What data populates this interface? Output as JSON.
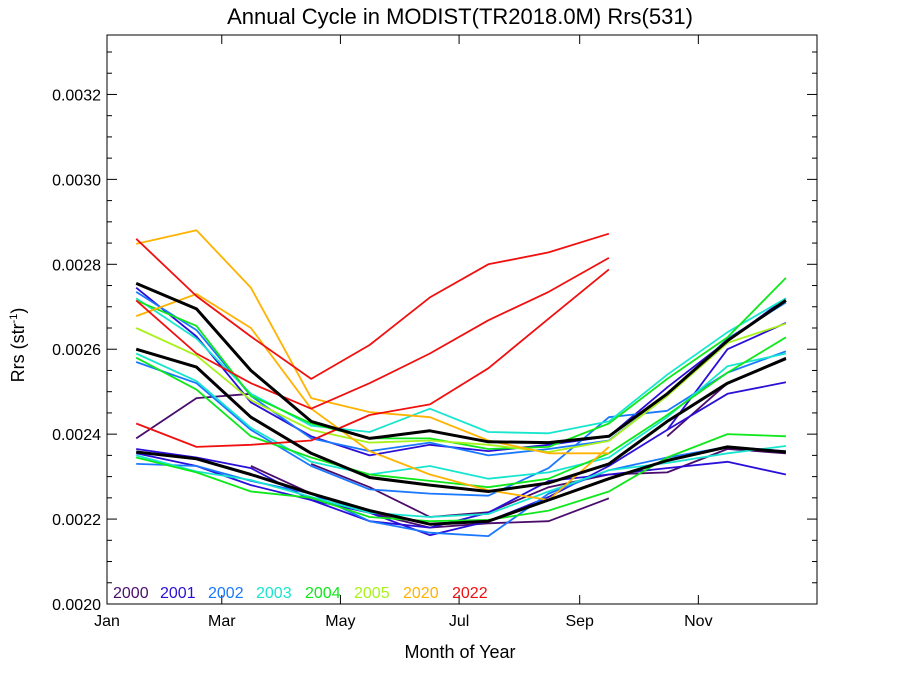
{
  "chart_data": {
    "type": "line",
    "title": "Annual Cycle in MODIST(TR2018.0M) Rrs(531)",
    "xlabel": "Month of Year",
    "ylabel_main": "Rrs (str",
    "ylabel_sup": "-1",
    "ylabel_end": ")",
    "xlim": [
      0,
      365
    ],
    "ylim": [
      0.002,
      0.00334
    ],
    "x_ticks": [
      {
        "value": 0,
        "label": "Jan"
      },
      {
        "value": 59,
        "label": "Mar"
      },
      {
        "value": 120,
        "label": "May"
      },
      {
        "value": 181,
        "label": "Jul"
      },
      {
        "value": 243,
        "label": "Sep"
      },
      {
        "value": 304,
        "label": "Nov"
      }
    ],
    "y_ticks": [
      {
        "value": 0.002,
        "label": "0.0020"
      },
      {
        "value": 0.0022,
        "label": "0.0022"
      },
      {
        "value": 0.0024,
        "label": "0.0024"
      },
      {
        "value": 0.0026,
        "label": "0.0026"
      },
      {
        "value": 0.0028,
        "label": "0.0028"
      },
      {
        "value": 0.003,
        "label": "0.0030"
      },
      {
        "value": 0.0032,
        "label": "0.0032"
      }
    ],
    "x": [
      15,
      46,
      74,
      105,
      135,
      166,
      196,
      227,
      258,
      288,
      319,
      349
    ],
    "legend": [
      {
        "label": "2000",
        "color": "#4b0d6b"
      },
      {
        "label": "2001",
        "color": "#2a0fd8"
      },
      {
        "label": "2002",
        "color": "#1a78ff"
      },
      {
        "label": "2003",
        "color": "#17e6cf"
      },
      {
        "label": "2004",
        "color": "#0fe81a"
      },
      {
        "label": "2005",
        "color": "#a8f21a"
      },
      {
        "label": "2020",
        "color": "#ffb200"
      },
      {
        "label": "2022",
        "color": "#f01010"
      }
    ],
    "series": [
      {
        "color": "#4b0d6b",
        "values": [
          0.00239,
          0.002485,
          0.002495,
          null,
          null,
          null,
          null,
          null,
          null,
          0.002395,
          0.00252,
          0.00258
        ]
      },
      {
        "color": "#4b0d6b",
        "values": [
          null,
          null,
          0.002325,
          0.00226,
          0.002215,
          0.00218,
          0.00219,
          0.002195,
          0.002249,
          null,
          null,
          null
        ]
      },
      {
        "color": "#4b0d6b",
        "values": [
          null,
          null,
          null,
          0.00233,
          0.002275,
          0.002205,
          0.002216,
          0.002275,
          0.002305,
          0.00231,
          0.002365,
          0.002355
        ]
      },
      {
        "color": "#2a0fd8",
        "values": [
          0.002745,
          0.00263,
          0.002475,
          0.002395,
          0.00235,
          0.002375,
          0.00236,
          0.002375,
          0.002395,
          0.00251,
          0.00262,
          0.00272
        ]
      },
      {
        "color": "#2a0fd8",
        "values": [
          0.002355,
          0.002325,
          0.00228,
          0.002245,
          0.002215,
          0.002162,
          0.002195,
          0.002252,
          0.002325,
          0.00241,
          0.0026,
          0.002662
        ]
      },
      {
        "color": "#2a0fd8",
        "values": [
          0.002365,
          0.002345,
          0.00232,
          0.002245,
          0.002195,
          0.00218,
          0.002215,
          0.00229,
          0.002305,
          0.00232,
          0.002335,
          0.002305
        ]
      },
      {
        "color": "#2a0fd8",
        "values": [
          null,
          null,
          null,
          null,
          null,
          null,
          null,
          null,
          null,
          0.00241,
          0.002495,
          0.002522
        ]
      },
      {
        "color": "#1a78ff",
        "values": [
          0.00257,
          0.00252,
          0.00241,
          0.002325,
          0.00227,
          0.00226,
          0.002255,
          0.00232,
          0.00244,
          0.002455,
          0.002545,
          0.002595
        ]
      },
      {
        "color": "#1a78ff",
        "values": [
          0.00233,
          0.002325,
          0.00229,
          0.00226,
          0.002195,
          0.002168,
          0.00216,
          0.00226,
          0.002315,
          0.002345,
          0.00237,
          0.00236
        ]
      },
      {
        "color": "#1a78ff",
        "values": [
          0.002735,
          0.002645,
          0.00249,
          0.00239,
          0.00236,
          0.00238,
          0.00235,
          0.002365,
          0.002385,
          0.00249,
          0.002625,
          0.00271
        ]
      },
      {
        "color": "#17e6cf",
        "values": [
          0.00272,
          0.002625,
          0.002495,
          0.00242,
          0.002405,
          0.00246,
          0.002405,
          0.002402,
          0.00243,
          0.00254,
          0.00264,
          0.00272
        ]
      },
      {
        "color": "#17e6cf",
        "values": [
          0.00259,
          0.002525,
          0.002415,
          0.002335,
          0.002305,
          0.002325,
          0.002295,
          0.00231,
          0.002345,
          0.00244,
          0.00256,
          0.00259
        ]
      },
      {
        "color": "#17e6cf",
        "values": [
          0.00235,
          0.002312,
          0.002292,
          0.002252,
          0.002215,
          0.002205,
          0.002212,
          0.002265,
          0.002315,
          0.002332,
          0.002355,
          0.002372
        ]
      },
      {
        "color": "#0fe81a",
        "values": [
          0.00258,
          0.002505,
          0.002395,
          0.002345,
          0.002305,
          0.00229,
          0.002275,
          0.002295,
          0.002355,
          0.002445,
          0.002545,
          0.002628
        ]
      },
      {
        "color": "#0fe81a",
        "values": [
          0.002345,
          0.00231,
          0.002265,
          0.00225,
          0.002205,
          0.002195,
          0.002198,
          0.00222,
          0.002265,
          0.002345,
          0.0024,
          0.002395
        ]
      },
      {
        "color": "#0fe81a",
        "values": [
          0.002715,
          0.002655,
          0.00249,
          0.002425,
          0.00239,
          0.00239,
          0.002365,
          0.00237,
          0.002425,
          0.00253,
          0.002628,
          0.002768
        ]
      },
      {
        "color": "#a8f21a",
        "values": [
          0.00265,
          0.002585,
          0.00248,
          0.00241,
          0.00238,
          0.002385,
          0.002375,
          0.002358,
          0.002384,
          0.00249,
          0.002615,
          0.00266
        ]
      },
      {
        "color": "#ffb200",
        "values": [
          0.002848,
          0.00288,
          0.002745,
          0.002485,
          0.002452,
          0.00244,
          0.002385,
          0.002355,
          0.002355,
          null,
          null,
          null
        ]
      },
      {
        "color": "#ffb200",
        "values": [
          0.002678,
          0.00273,
          0.00265,
          0.00246,
          0.00236,
          0.002305,
          0.002268,
          0.002245,
          0.00237,
          null,
          null,
          null
        ]
      },
      {
        "color": "#f01010",
        "values": [
          0.00286,
          0.002725,
          0.00263,
          0.00253,
          0.00261,
          0.002722,
          0.0028,
          0.002828,
          0.002872,
          null,
          null,
          null
        ]
      },
      {
        "color": "#f01010",
        "values": [
          0.002715,
          0.00259,
          0.00252,
          0.00246,
          0.00252,
          0.00259,
          0.002668,
          0.002735,
          0.002815,
          null,
          null,
          null
        ]
      },
      {
        "color": "#f01010",
        "values": [
          0.002425,
          0.00237,
          0.002375,
          0.002385,
          0.002445,
          0.00247,
          0.002555,
          0.002672,
          0.002788,
          null,
          null,
          null
        ]
      },
      {
        "color": "#000000",
        "width": 3,
        "values": [
          0.002755,
          0.002695,
          0.00255,
          0.00243,
          0.00239,
          0.002408,
          0.002382,
          0.00238,
          0.002395,
          0.002495,
          0.00262,
          0.002715
        ]
      },
      {
        "color": "#000000",
        "width": 3,
        "values": [
          0.0026,
          0.002558,
          0.00244,
          0.002355,
          0.002298,
          0.00228,
          0.002265,
          0.002285,
          0.00233,
          0.00243,
          0.00252,
          0.002578
        ]
      },
      {
        "color": "#000000",
        "width": 3,
        "values": [
          0.002358,
          0.002342,
          0.002305,
          0.00226,
          0.00222,
          0.002188,
          0.002195,
          0.002245,
          0.002295,
          0.002338,
          0.00237,
          0.002358
        ]
      }
    ]
  }
}
